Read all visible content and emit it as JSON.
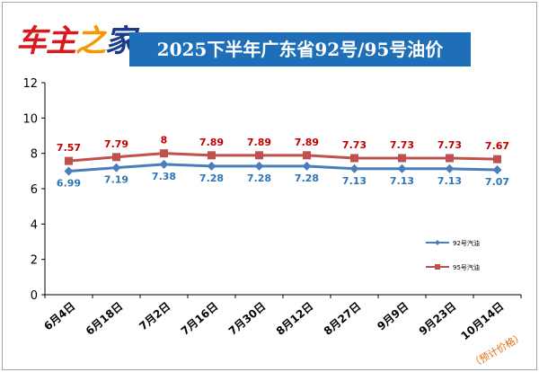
{
  "header": {
    "logo": {
      "part_a": "车主",
      "part_b": "之",
      "part_c": "家"
    },
    "title": "2025下半年广东省92号/95号油价"
  },
  "chart_data": {
    "type": "line",
    "title": "2025下半年广东省92号/95号油价",
    "categories": [
      "6月4日",
      "6月18日",
      "7月2日",
      "7月16日",
      "7月30日",
      "8月12日",
      "8月27日",
      "9月9日",
      "9月23日",
      "10月14日"
    ],
    "series": [
      {
        "name": "92号汽油",
        "values": [
          6.99,
          7.19,
          7.38,
          7.28,
          7.28,
          7.28,
          7.13,
          7.13,
          7.13,
          7.07
        ],
        "color": "#4a7ebb",
        "marker": "diamond"
      },
      {
        "name": "95号汽油",
        "values": [
          7.57,
          7.79,
          8,
          7.89,
          7.89,
          7.89,
          7.73,
          7.73,
          7.73,
          7.67
        ],
        "color": "#c0504d",
        "marker": "square"
      }
    ],
    "y_ticks": [
      "0",
      "2",
      "4",
      "6",
      "8",
      "10",
      "12"
    ],
    "ylim": [
      0,
      12
    ],
    "xlabel": "",
    "ylabel": "",
    "grid": false,
    "legend": "right",
    "annotation": "（预计价格）"
  }
}
